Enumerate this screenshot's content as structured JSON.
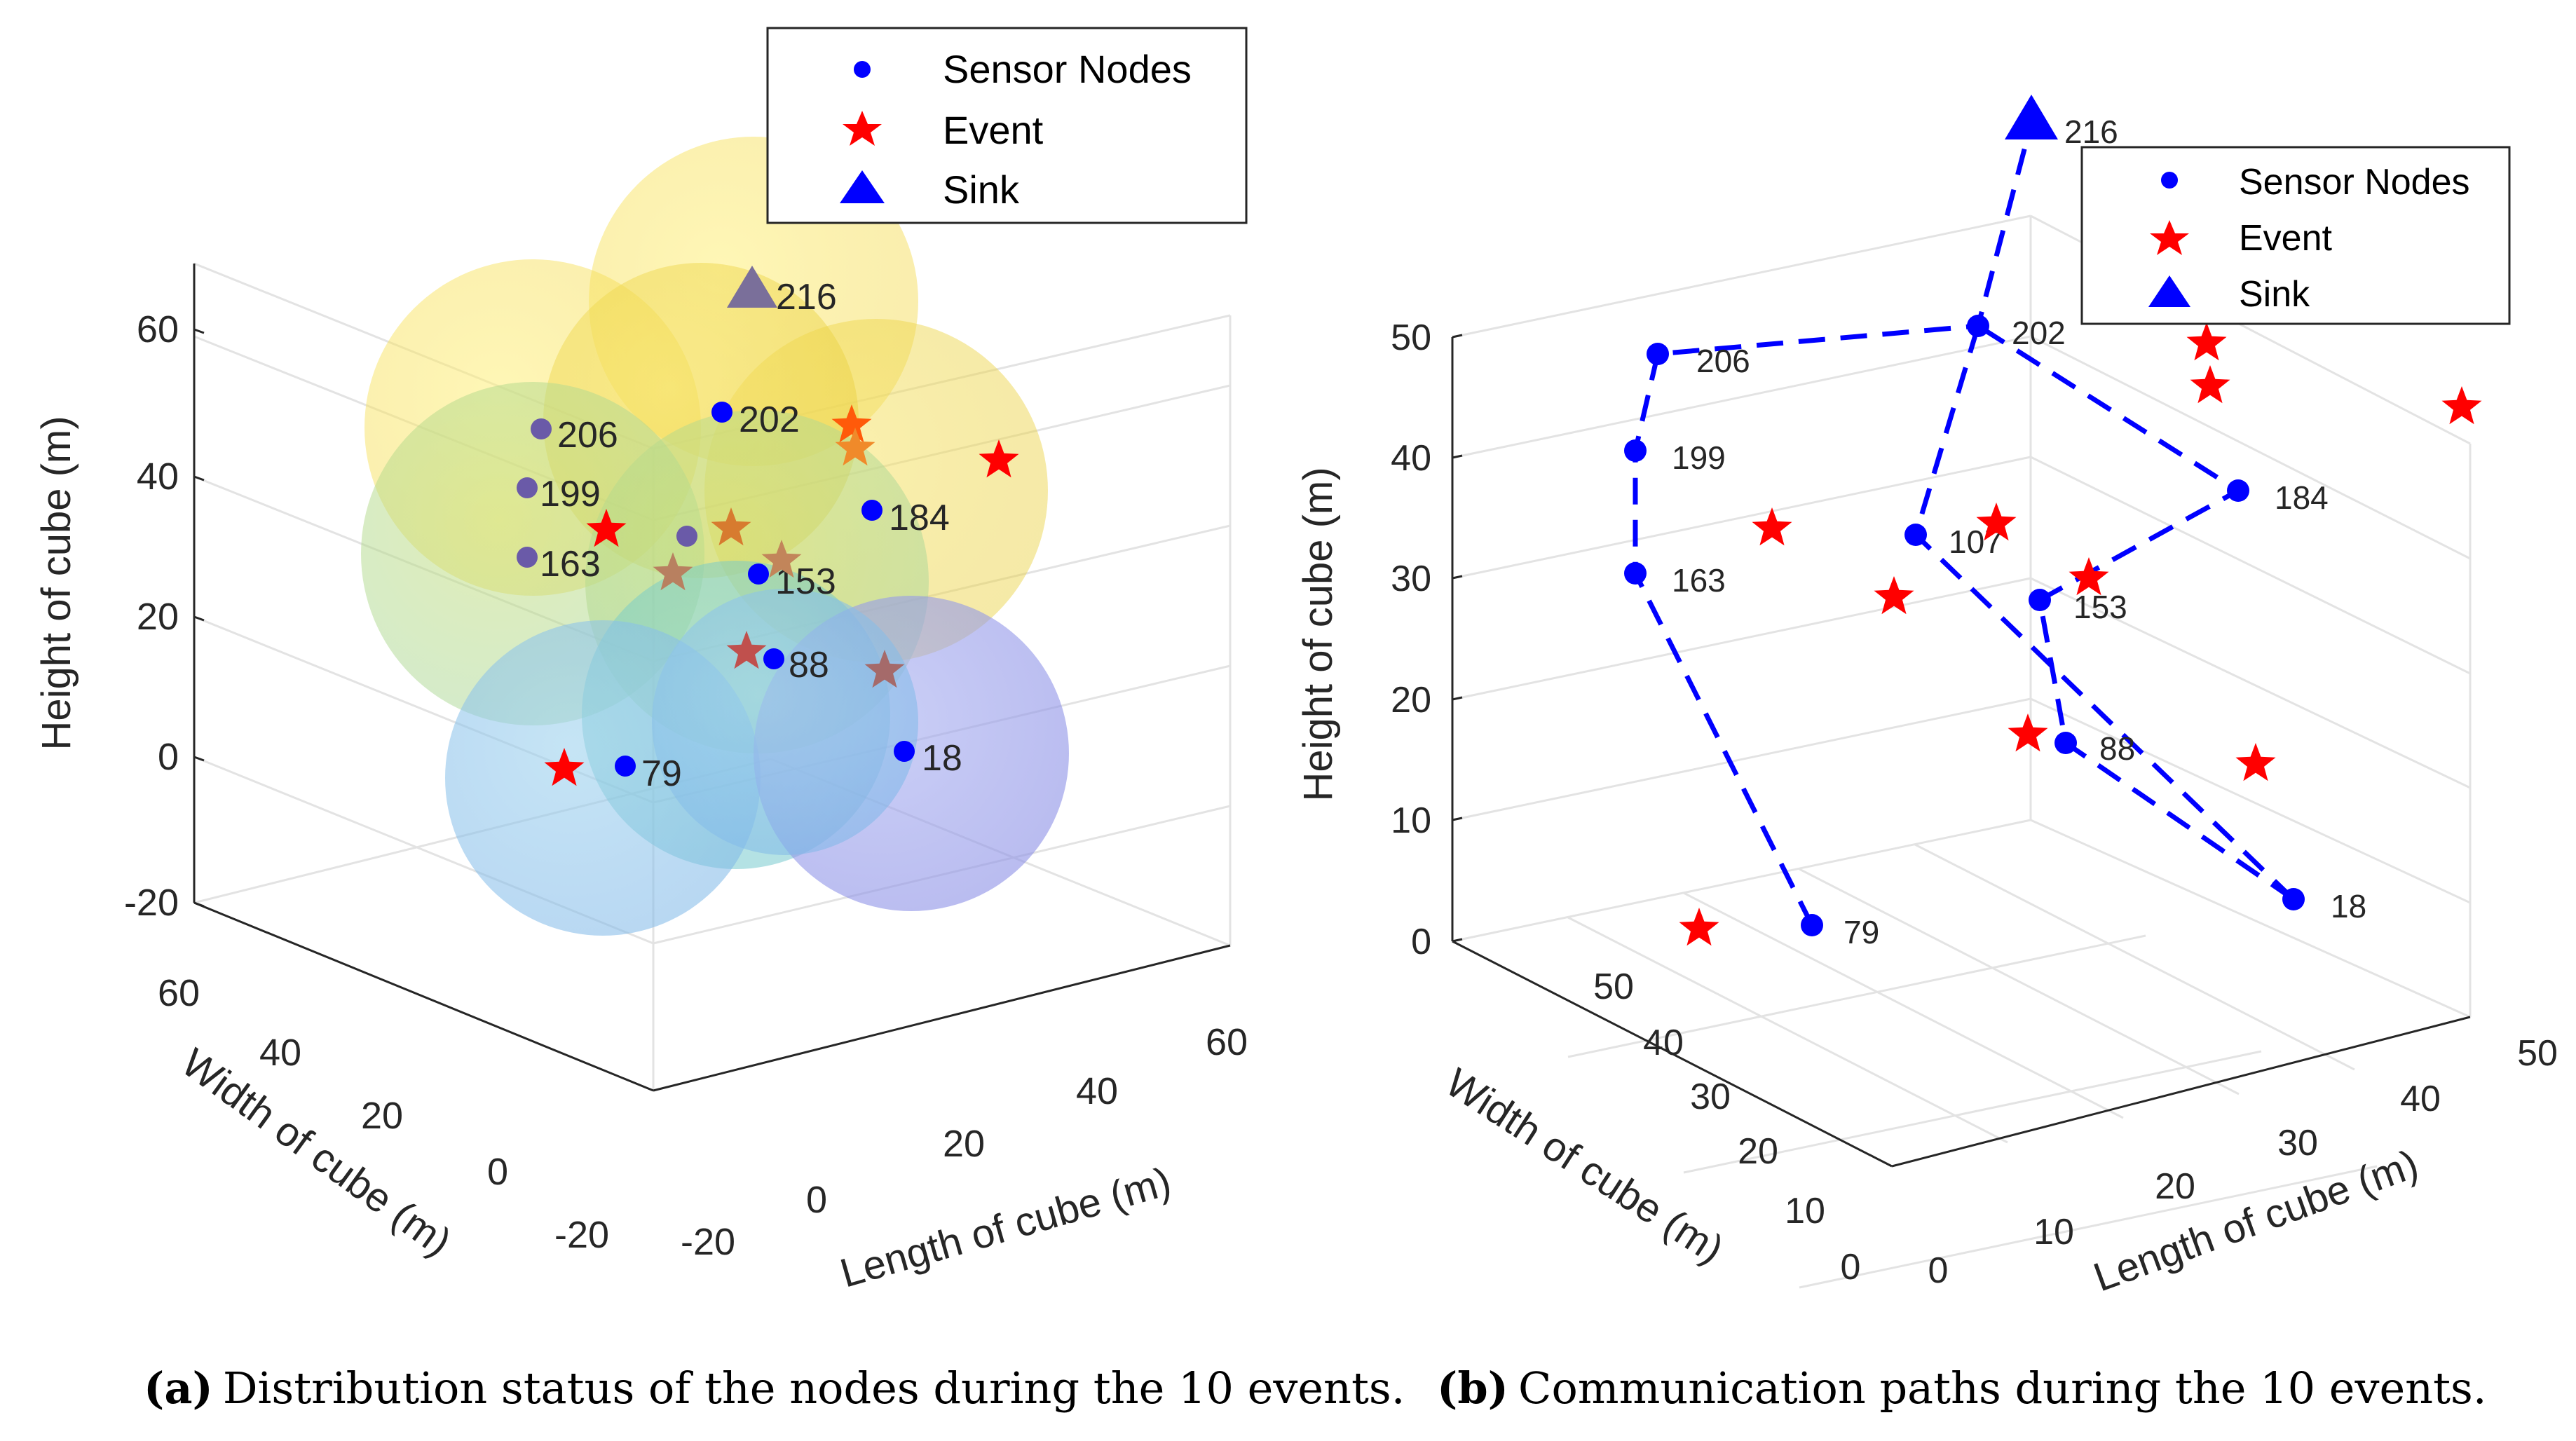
{
  "figure": {
    "subfig_a": {
      "letter": "(a)",
      "caption": "Distribution status of the nodes during the 10 events."
    },
    "subfig_b": {
      "letter": "(b)",
      "caption": "Communication paths during the 10 events."
    }
  },
  "colors": {
    "node": "#0000ff",
    "event": "#ff0000",
    "sink": "#0000ff",
    "grid": "#e6e6e6",
    "axis": "#262626"
  },
  "chart_data": [
    {
      "type": "scatter",
      "projection": "3d",
      "title": "",
      "xlabel": "Length of cube (m)",
      "ylabel": "Width of cube (m)",
      "zlabel": "Height of cube (m)",
      "xticks": [
        "-20",
        "0",
        "20",
        "40",
        "60"
      ],
      "yticks": [
        "-20",
        "0",
        "20",
        "40",
        "60"
      ],
      "zticks": [
        "-20",
        "0",
        "20",
        "40",
        "60"
      ],
      "legend": [
        "Sensor Nodes",
        "Event",
        "Sink"
      ],
      "legend_position": "top-right",
      "coverage_spheres": true,
      "nodes": [
        {
          "id": "216",
          "label": "216",
          "kind": "sink"
        },
        {
          "id": "206",
          "label": "206"
        },
        {
          "id": "202",
          "label": "202"
        },
        {
          "id": "199",
          "label": "199"
        },
        {
          "id": "184",
          "label": "184"
        },
        {
          "id": "163",
          "label": "163"
        },
        {
          "id": "153",
          "label": "153"
        },
        {
          "id": "107",
          "label": ""
        },
        {
          "id": "88",
          "label": "88"
        },
        {
          "id": "79",
          "label": "79"
        },
        {
          "id": "18",
          "label": "18"
        }
      ],
      "events": 10
    },
    {
      "type": "line",
      "projection": "3d",
      "title": "",
      "xlabel": "Length of cube (m)",
      "ylabel": "Width of cube (m)",
      "zlabel": "Height of cube (m)",
      "xticks": [
        "0",
        "10",
        "20",
        "30",
        "40",
        "50"
      ],
      "yticks": [
        "0",
        "10",
        "20",
        "30",
        "40",
        "50"
      ],
      "zticks": [
        "0",
        "10",
        "20",
        "30",
        "40",
        "50"
      ],
      "legend": [
        "Sensor Nodes",
        "Event",
        "Sink"
      ],
      "legend_position": "top-right",
      "nodes": [
        {
          "id": "216",
          "label": "216",
          "kind": "sink"
        },
        {
          "id": "206",
          "label": "206"
        },
        {
          "id": "202",
          "label": "202"
        },
        {
          "id": "199",
          "label": "199"
        },
        {
          "id": "184",
          "label": "184"
        },
        {
          "id": "163",
          "label": "163"
        },
        {
          "id": "153",
          "label": "153"
        },
        {
          "id": "107",
          "label": "107"
        },
        {
          "id": "88",
          "label": "88"
        },
        {
          "id": "79",
          "label": "79"
        },
        {
          "id": "18",
          "label": "18"
        }
      ],
      "paths": [
        [
          "79",
          "163",
          "199",
          "206",
          "202",
          "216"
        ],
        [
          "18",
          "88",
          "153",
          "184",
          "202"
        ],
        [
          "18",
          "107",
          "202"
        ]
      ],
      "events": 10
    }
  ]
}
